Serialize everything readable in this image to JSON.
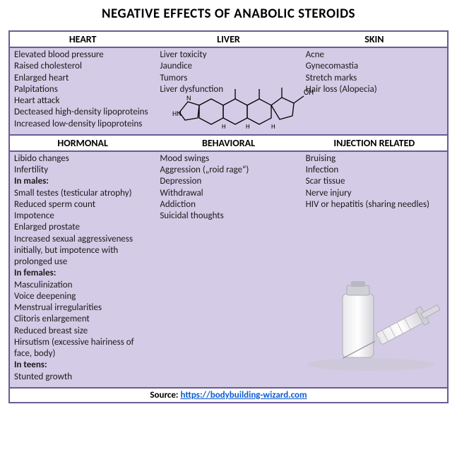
{
  "title": "NEGATIVE EFFECTS OF ANABOLIC STEROIDS",
  "colors": {
    "border": "#6b5b95",
    "body_bg": "#d4cbe6",
    "header_bg": "#ffffff",
    "link": "#0b5bd3",
    "text": "#1a1a1a"
  },
  "fonts": {
    "title_size": 19,
    "header_size": 14,
    "body_size": 13,
    "family": "Calibri"
  },
  "row1": {
    "headers": [
      "HEART",
      "LIVER",
      "SKIN"
    ],
    "columns": [
      {
        "items": [
          {
            "text": "Elevated blood pressure"
          },
          {
            "text": "Raised cholesterol"
          },
          {
            "text": "Enlarged heart"
          },
          {
            "text": "Palpitations"
          },
          {
            "text": "Heart attack"
          },
          {
            "text": "Decteased high-density lipoproteins"
          },
          {
            "text": "Increased low-density lipoproteins"
          }
        ]
      },
      {
        "items": [
          {
            "text": "Liver toxicity"
          },
          {
            "text": "Jaundice"
          },
          {
            "text": "Tumors"
          },
          {
            "text": "Liver dysfunction"
          }
        ]
      },
      {
        "items": [
          {
            "text": "Acne"
          },
          {
            "text": "Gynecomastia"
          },
          {
            "text": "Stretch marks"
          },
          {
            "text": "Hair loss (Alopecia)"
          }
        ]
      }
    ]
  },
  "row2": {
    "headers": [
      "HORMONAL",
      "BEHAVIORAL",
      "INJECTION RELATED"
    ],
    "columns": [
      {
        "items": [
          {
            "text": "Libido changes"
          },
          {
            "text": "Infertility"
          },
          {
            "text": "In males:",
            "bold": true
          },
          {
            "text": "Small testes (testicular atrophy)"
          },
          {
            "text": "Reduced sperm count"
          },
          {
            "text": "Impotence"
          },
          {
            "text": "Enlarged prostate"
          },
          {
            "text": "Increased sexual aggressiveness initially, but impotence with prolonged use"
          },
          {
            "text": "In females:",
            "bold": true
          },
          {
            "text": "Masculinization"
          },
          {
            "text": "Voice deepening"
          },
          {
            "text": "Menstrual irregularities"
          },
          {
            "text": "Clitoris enlargement"
          },
          {
            "text": "Reduced breast size"
          },
          {
            "text": "Hirsutism (excessive hairiness of face, body)"
          },
          {
            "text": "In teens:",
            "bold": true
          },
          {
            "text": "Stunted growth"
          }
        ]
      },
      {
        "items": [
          {
            "text": "Mood swings"
          },
          {
            "text": "Aggression („roid rage“)"
          },
          {
            "text": "Depression"
          },
          {
            "text": "Withdrawal"
          },
          {
            "text": "Addiction"
          },
          {
            "text": "Suicidal  thoughts"
          }
        ]
      },
      {
        "items": [
          {
            "text": "Bruising"
          },
          {
            "text": "Infection"
          },
          {
            "text": "Scar tissue"
          },
          {
            "text": "Nerve injury"
          },
          {
            "text": "HIV or hepatitis (sharing needles)"
          }
        ]
      }
    ]
  },
  "source": {
    "label": "Source:",
    "url_text": "https://bodybuilding-wizard.com",
    "url_href": "https://bodybuilding-wizard.com"
  },
  "decorations": {
    "molecule_icon": "steroid-molecule",
    "syringe_icon": "syringe-vial"
  }
}
